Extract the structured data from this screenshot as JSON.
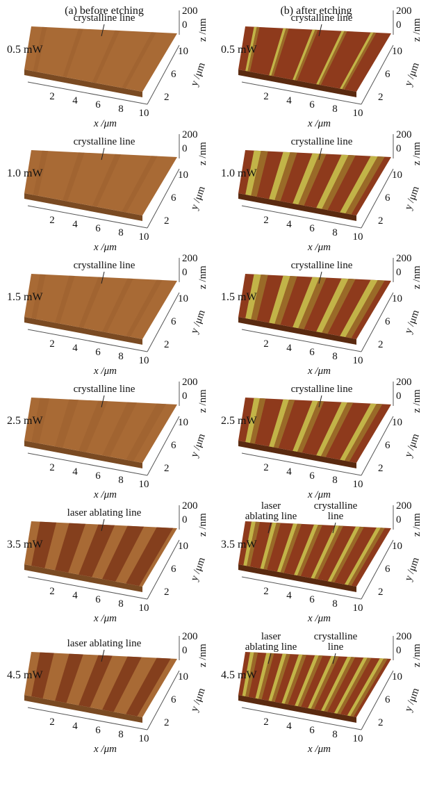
{
  "axes": {
    "x_ticks": [
      "2",
      "4",
      "6",
      "8",
      "10"
    ],
    "y_ticks": [
      "10",
      "6",
      "2"
    ],
    "z_ticks": [
      "200",
      "0"
    ],
    "x_label": "x /μm",
    "y_label": "y /μm",
    "z_label": "z /nm"
  },
  "columns": [
    {
      "title": "(a) before etching",
      "panels": [
        {
          "power": "0.5 mW",
          "annotations": [
            {
              "lines": [
                "crystalline line"
              ]
            }
          ]
        },
        {
          "power": "1.0 mW",
          "annotations": [
            {
              "lines": [
                "crystalline line"
              ]
            }
          ]
        },
        {
          "power": "1.5 mW",
          "annotations": [
            {
              "lines": [
                "crystalline line"
              ]
            }
          ]
        },
        {
          "power": "2.5 mW",
          "annotations": [
            {
              "lines": [
                "crystalline line"
              ]
            }
          ]
        },
        {
          "power": "3.5 mW",
          "annotations": [
            {
              "lines": [
                "laser ablating line"
              ]
            }
          ]
        },
        {
          "power": "4.5 mW",
          "annotations": [
            {
              "lines": [
                "laser ablating line"
              ]
            }
          ]
        }
      ]
    },
    {
      "title": "(b) after etching",
      "panels": [
        {
          "power": "0.5 mW",
          "annotations": [
            {
              "lines": [
                "crystalline line"
              ]
            }
          ]
        },
        {
          "power": "1.0 mW",
          "annotations": [
            {
              "lines": [
                "crystalline line"
              ]
            }
          ]
        },
        {
          "power": "1.5 mW",
          "annotations": [
            {
              "lines": [
                "crystalline line"
              ]
            }
          ]
        },
        {
          "power": "2.5 mW",
          "annotations": [
            {
              "lines": [
                "crystalline line"
              ]
            }
          ]
        },
        {
          "power": "3.5 mW",
          "annotations": [
            {
              "lines": [
                "laser",
                "ablating line"
              ]
            },
            {
              "lines": [
                "crystalline",
                "line"
              ]
            }
          ]
        },
        {
          "power": "4.5 mW",
          "annotations": [
            {
              "lines": [
                "laser",
                "ablating line"
              ]
            },
            {
              "lines": [
                "crystalline",
                "line"
              ]
            }
          ]
        }
      ]
    }
  ]
}
